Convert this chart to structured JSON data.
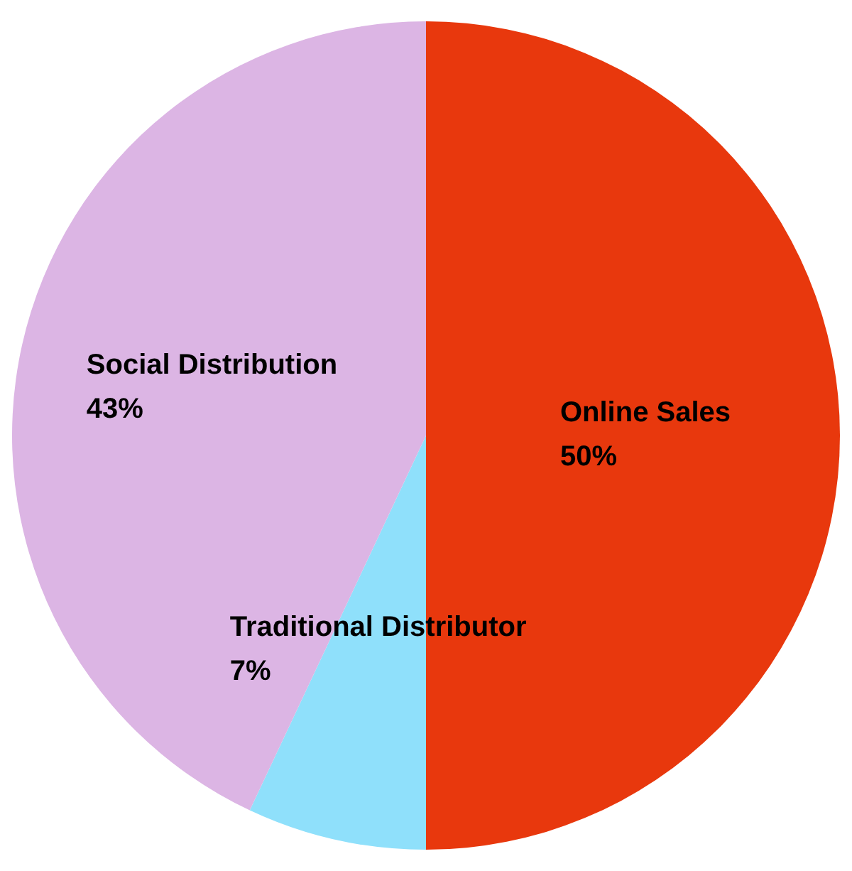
{
  "chart_data": {
    "type": "pie",
    "categories": [
      "Online Sales",
      "Traditional Distributor",
      "Social Distribution"
    ],
    "values": [
      50,
      7,
      43
    ],
    "value_labels": [
      "50%",
      "7%",
      "43%"
    ],
    "colors": [
      "#e8380d",
      "#8fe0fb",
      "#dcb5e4"
    ],
    "legend": false
  }
}
